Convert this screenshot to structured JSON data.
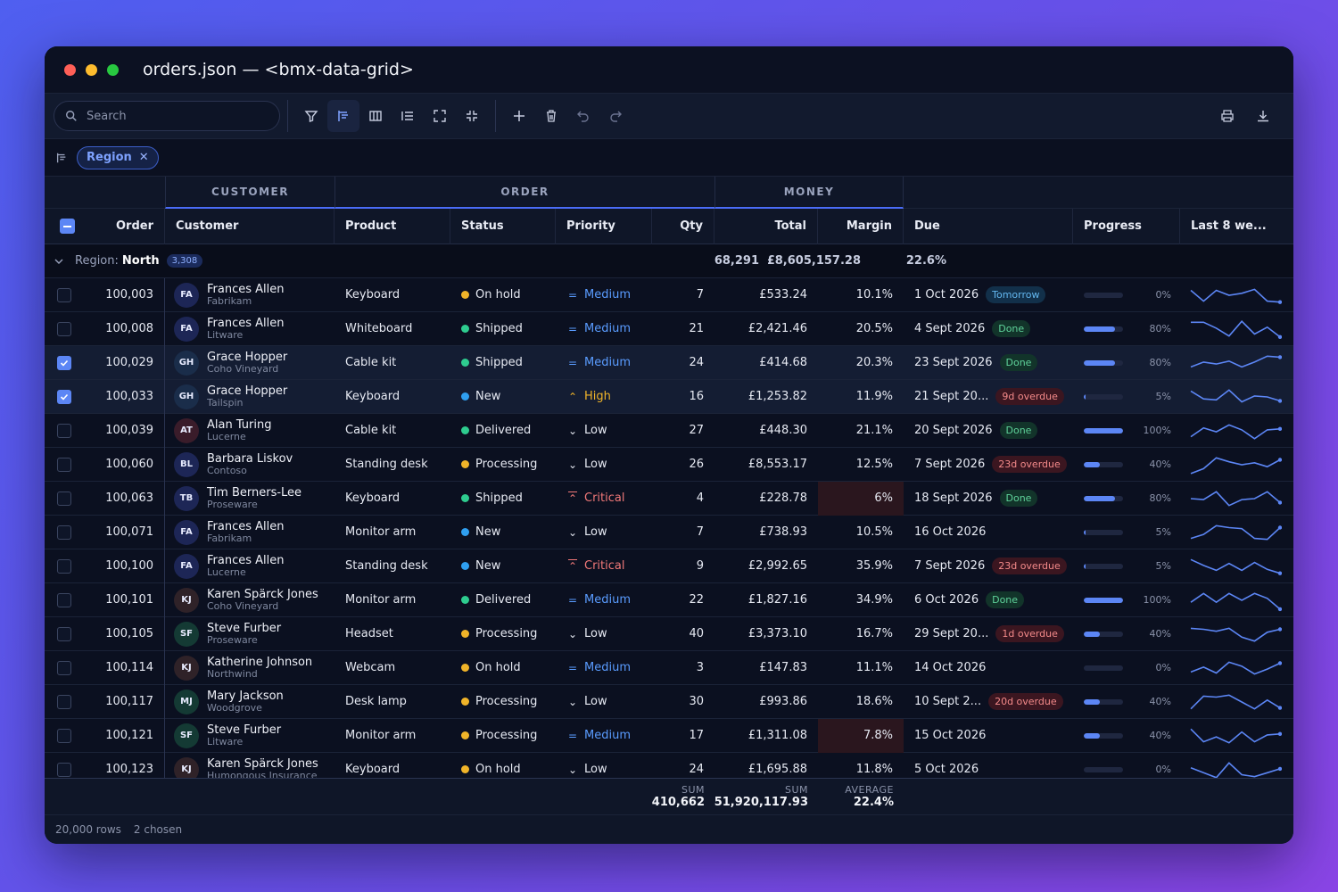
{
  "window": {
    "title": "orders.json — <bmx-data-grid>"
  },
  "toolbar": {
    "search_placeholder": "Search",
    "buttons": [
      "filter-icon",
      "group-icon",
      "columns-icon",
      "density-icon",
      "expand-icon",
      "collapse-icon",
      "add-icon",
      "delete-icon",
      "undo-icon",
      "redo-icon",
      "print-icon",
      "download-icon"
    ]
  },
  "groupbar": {
    "chip_label": "Region"
  },
  "bands": {
    "customer": "CUSTOMER",
    "order": "ORDER",
    "money": "MONEY"
  },
  "columns": [
    "Order",
    "Customer",
    "Product",
    "Status",
    "Priority",
    "Qty",
    "Total",
    "Margin",
    "Due",
    "Progress",
    "Last 8 we..."
  ],
  "group": {
    "label": "Region:",
    "value": "North",
    "count": "3,308",
    "qty": "68,291",
    "total": "£8,605,157.28",
    "margin": "22.6%"
  },
  "colors": {
    "accent": "#5c86f5",
    "shipped": "#2ecc8f",
    "delivered": "#2ecc8f",
    "new": "#2f9ff0",
    "hold": "#f0b429",
    "processing": "#f0b429",
    "medium": "#5a9cff",
    "high": "#f0b429",
    "critical": "#f07878",
    "low": "#e6e9f2"
  },
  "rows": [
    {
      "order": "100,003",
      "initials": "FA",
      "name": "Frances Allen",
      "company": "Fabrikam",
      "product": "Keyboard",
      "status": "On hold",
      "status_key": "hold",
      "priority": "Medium",
      "priority_key": "medium",
      "qty": "7",
      "total": "£533.24",
      "margin": "10.1%",
      "due": "1 Oct 2026",
      "badge": "Tomorrow",
      "badge_kind": "tom",
      "progress": 0,
      "progress_label": "0%",
      "checked": false,
      "spark": [
        0.75,
        0.2,
        0.75,
        0.5,
        0.6,
        0.8,
        0.2,
        0.15
      ]
    },
    {
      "order": "100,008",
      "initials": "FA",
      "name": "Frances Allen",
      "company": "Litware",
      "product": "Whiteboard",
      "status": "Shipped",
      "status_key": "shipped",
      "priority": "Medium",
      "priority_key": "medium",
      "qty": "21",
      "total": "£2,421.46",
      "margin": "20.5%",
      "due": "4 Sept 2026",
      "badge": "Done",
      "badge_kind": "done",
      "progress": 80,
      "progress_label": "80%",
      "checked": false,
      "spark": [
        0.85,
        0.85,
        0.55,
        0.15,
        0.9,
        0.25,
        0.6,
        0.1
      ]
    },
    {
      "order": "100,029",
      "initials": "GH",
      "name": "Grace Hopper",
      "company": "Coho Vineyard",
      "product": "Cable kit",
      "status": "Shipped",
      "status_key": "shipped",
      "priority": "Medium",
      "priority_key": "medium",
      "qty": "24",
      "total": "£414.68",
      "margin": "20.3%",
      "due": "23 Sept 2026",
      "badge": "Done",
      "badge_kind": "done",
      "progress": 80,
      "progress_label": "80%",
      "checked": true,
      "spark": [
        0.3,
        0.55,
        0.45,
        0.6,
        0.3,
        0.55,
        0.85,
        0.8
      ]
    },
    {
      "order": "100,033",
      "initials": "GH",
      "name": "Grace Hopper",
      "company": "Tailspin",
      "product": "Keyboard",
      "status": "New",
      "status_key": "new",
      "priority": "High",
      "priority_key": "high",
      "qty": "16",
      "total": "£1,253.82",
      "margin": "11.9%",
      "due": "21 Sept 20...",
      "badge": "9d overdue",
      "badge_kind": "over",
      "progress": 5,
      "progress_label": "5%",
      "checked": true,
      "spark": [
        0.8,
        0.4,
        0.35,
        0.85,
        0.25,
        0.55,
        0.5,
        0.3
      ]
    },
    {
      "order": "100,039",
      "initials": "AT",
      "name": "Alan Turing",
      "company": "Lucerne",
      "product": "Cable kit",
      "status": "Delivered",
      "status_key": "delivered",
      "priority": "Low",
      "priority_key": "low",
      "qty": "27",
      "total": "£448.30",
      "margin": "21.1%",
      "due": "20 Sept 2026",
      "badge": "Done",
      "badge_kind": "done",
      "progress": 100,
      "progress_label": "100%",
      "checked": false,
      "spark": [
        0.2,
        0.65,
        0.45,
        0.8,
        0.55,
        0.1,
        0.55,
        0.6
      ]
    },
    {
      "order": "100,060",
      "initials": "BL",
      "name": "Barbara Liskov",
      "company": "Contoso",
      "product": "Standing desk",
      "status": "Processing",
      "status_key": "processing",
      "priority": "Low",
      "priority_key": "low",
      "qty": "26",
      "total": "£8,553.17",
      "margin": "12.5%",
      "due": "7 Sept 2026",
      "badge": "23d overdue",
      "badge_kind": "over",
      "progress": 40,
      "progress_label": "40%",
      "checked": false,
      "spark": [
        0.05,
        0.3,
        0.85,
        0.65,
        0.5,
        0.6,
        0.4,
        0.75
      ]
    },
    {
      "order": "100,063",
      "initials": "TB",
      "name": "Tim Berners-Lee",
      "company": "Proseware",
      "product": "Keyboard",
      "status": "Shipped",
      "status_key": "shipped",
      "priority": "Critical",
      "priority_key": "critical",
      "qty": "4",
      "total": "£228.78",
      "margin": "6%",
      "margin_alert": true,
      "due": "18 Sept 2026",
      "badge": "Done",
      "badge_kind": "done",
      "progress": 80,
      "progress_label": "80%",
      "checked": false,
      "spark": [
        0.5,
        0.45,
        0.85,
        0.15,
        0.45,
        0.5,
        0.85,
        0.3
      ]
    },
    {
      "order": "100,071",
      "initials": "FA",
      "name": "Frances Allen",
      "company": "Fabrikam",
      "product": "Monitor arm",
      "status": "New",
      "status_key": "new",
      "priority": "Low",
      "priority_key": "low",
      "qty": "7",
      "total": "£738.93",
      "margin": "10.5%",
      "due": "16 Oct 2026",
      "badge": "",
      "badge_kind": "",
      "progress": 5,
      "progress_label": "5%",
      "checked": false,
      "spark": [
        0.2,
        0.4,
        0.85,
        0.75,
        0.7,
        0.2,
        0.15,
        0.75
      ]
    },
    {
      "order": "100,100",
      "initials": "FA",
      "name": "Frances Allen",
      "company": "Lucerne",
      "product": "Standing desk",
      "status": "New",
      "status_key": "new",
      "priority": "Critical",
      "priority_key": "critical",
      "qty": "9",
      "total": "£2,992.65",
      "margin": "35.9%",
      "due": "7 Sept 2026",
      "badge": "23d overdue",
      "badge_kind": "over",
      "progress": 5,
      "progress_label": "5%",
      "checked": false,
      "spark": [
        0.85,
        0.55,
        0.3,
        0.65,
        0.3,
        0.7,
        0.35,
        0.15
      ]
    },
    {
      "order": "100,101",
      "initials": "KJ",
      "name": "Karen Spärck Jones",
      "company": "Coho Vineyard",
      "product": "Monitor arm",
      "status": "Delivered",
      "status_key": "delivered",
      "priority": "Medium",
      "priority_key": "medium",
      "qty": "22",
      "total": "£1,827.16",
      "margin": "34.9%",
      "due": "6 Oct 2026",
      "badge": "Done",
      "badge_kind": "done",
      "progress": 100,
      "progress_label": "100%",
      "checked": false,
      "spark": [
        0.4,
        0.85,
        0.4,
        0.85,
        0.5,
        0.85,
        0.6,
        0.05
      ]
    },
    {
      "order": "100,105",
      "initials": "SF",
      "name": "Steve Furber",
      "company": "Proseware",
      "product": "Headset",
      "status": "Processing",
      "status_key": "processing",
      "priority": "Low",
      "priority_key": "low",
      "qty": "40",
      "total": "£3,373.10",
      "margin": "16.7%",
      "due": "29 Sept 20...",
      "badge": "1d overdue",
      "badge_kind": "over",
      "progress": 40,
      "progress_label": "40%",
      "checked": false,
      "spark": [
        0.8,
        0.75,
        0.65,
        0.8,
        0.35,
        0.15,
        0.6,
        0.75
      ]
    },
    {
      "order": "100,114",
      "initials": "KJ",
      "name": "Katherine Johnson",
      "company": "Northwind",
      "product": "Webcam",
      "status": "On hold",
      "status_key": "hold",
      "priority": "Medium",
      "priority_key": "medium",
      "qty": "3",
      "total": "£147.83",
      "margin": "11.1%",
      "due": "14 Oct 2026",
      "badge": "",
      "badge_kind": "",
      "progress": 0,
      "progress_label": "0%",
      "checked": false,
      "spark": [
        0.3,
        0.55,
        0.25,
        0.8,
        0.6,
        0.2,
        0.45,
        0.75
      ]
    },
    {
      "order": "100,117",
      "initials": "MJ",
      "name": "Mary Jackson",
      "company": "Woodgrove",
      "product": "Desk lamp",
      "status": "Processing",
      "status_key": "processing",
      "priority": "Low",
      "priority_key": "low",
      "qty": "30",
      "total": "£993.86",
      "margin": "18.6%",
      "due": "10 Sept 2...",
      "badge": "20d overdue",
      "badge_kind": "over",
      "progress": 40,
      "progress_label": "40%",
      "checked": false,
      "spark": [
        0.15,
        0.8,
        0.75,
        0.85,
        0.5,
        0.15,
        0.6,
        0.2
      ]
    },
    {
      "order": "100,121",
      "initials": "SF",
      "name": "Steve Furber",
      "company": "Litware",
      "product": "Monitor arm",
      "status": "Processing",
      "status_key": "processing",
      "priority": "Medium",
      "priority_key": "medium",
      "qty": "17",
      "total": "£1,311.08",
      "margin": "7.8%",
      "margin_alert": true,
      "due": "15 Oct 2026",
      "badge": "",
      "badge_kind": "",
      "progress": 40,
      "progress_label": "40%",
      "checked": false,
      "spark": [
        0.85,
        0.2,
        0.45,
        0.15,
        0.7,
        0.2,
        0.55,
        0.6
      ]
    },
    {
      "order": "100,123",
      "initials": "KJ",
      "name": "Karen Spärck Jones",
      "company": "Humongous Insurance",
      "product": "Keyboard",
      "status": "On hold",
      "status_key": "hold",
      "priority": "Low",
      "priority_key": "low",
      "qty": "24",
      "total": "£1,695.88",
      "margin": "11.8%",
      "due": "5 Oct 2026",
      "badge": "",
      "badge_kind": "",
      "progress": 0,
      "progress_label": "0%",
      "checked": false,
      "spark": [
        0.6,
        0.35,
        0.1,
        0.85,
        0.25,
        0.15,
        0.35,
        0.55
      ]
    }
  ],
  "footer": {
    "qty_label": "SUM",
    "qty_value": "410,662",
    "total_label": "SUM",
    "total_value": "51,920,117.93",
    "margin_label": "AVERAGE",
    "margin_value": "22.4%"
  },
  "statusbar": {
    "rows": "20,000 rows",
    "chosen": "2 chosen"
  }
}
